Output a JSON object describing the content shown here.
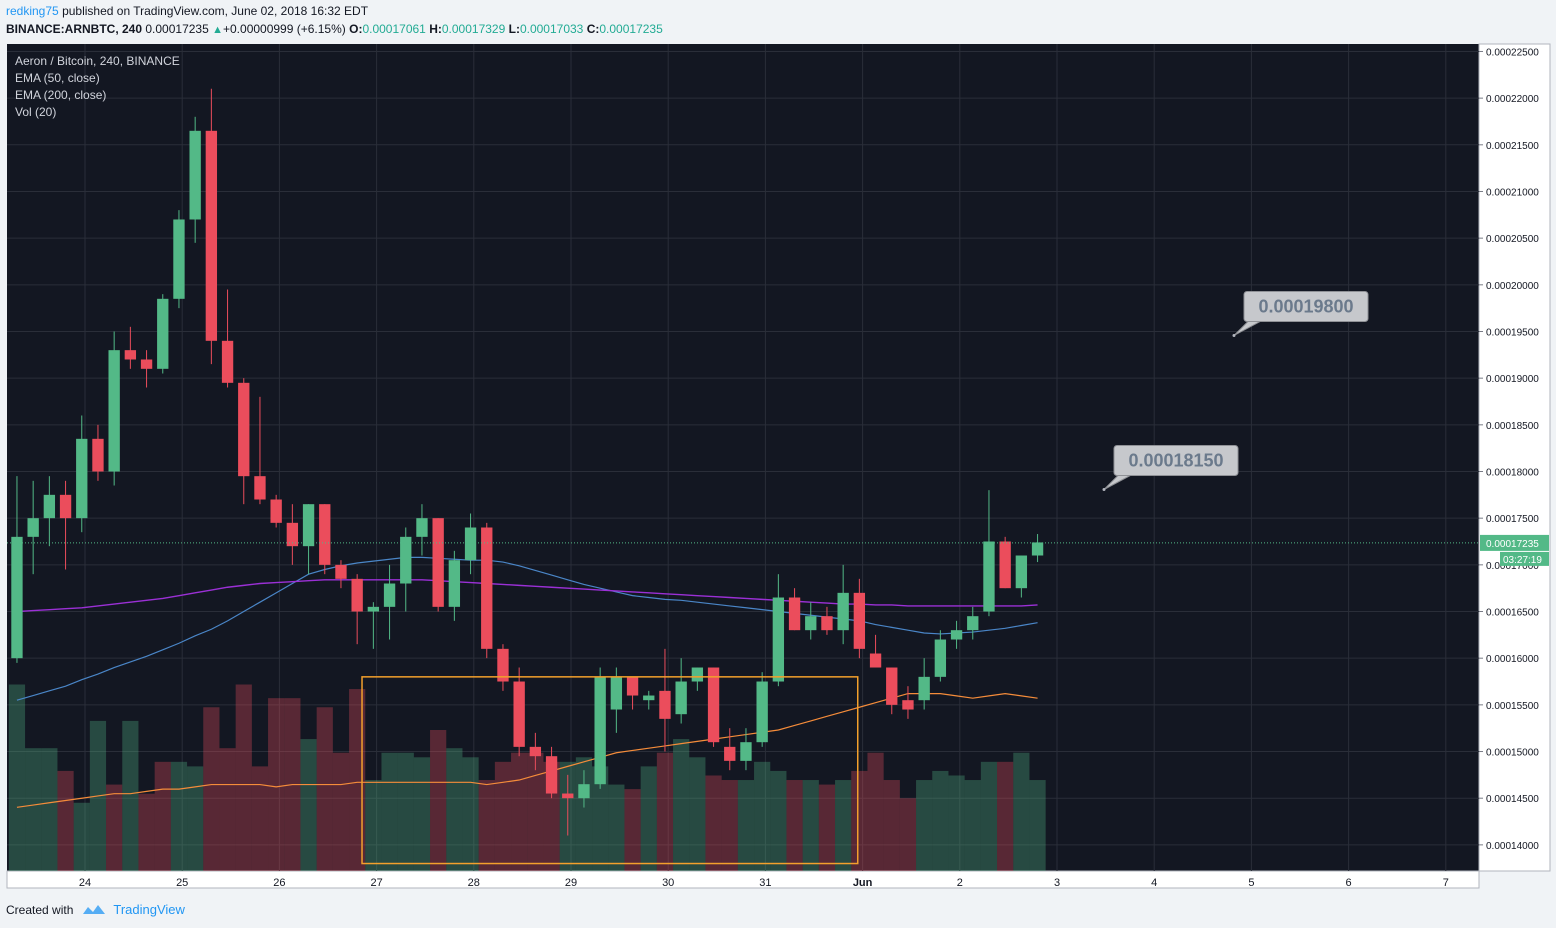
{
  "header": {
    "author": "redking75",
    "published_text": "published on TradingView.com, June 02, 2018 16:32 EDT",
    "symbol": "BINANCE:ARNBTC, 240",
    "last_price": "0.00017235",
    "change": "+0.00000999 (+6.15%)",
    "o_label": "O:",
    "o_value": "0.00017061",
    "h_label": "H:",
    "h_value": "0.00017329",
    "l_label": "L:",
    "l_value": "0.00017033",
    "c_label": "C:",
    "c_value": "0.00017235"
  },
  "legend": {
    "title": "Aeron / Bitcoin, 240, BINANCE",
    "ema50": "EMA (50, close)",
    "ema200": "EMA (200, close)",
    "vol": "Vol (20)"
  },
  "footer": {
    "created_with": "Created with",
    "brand": "TradingView"
  },
  "colors": {
    "background": "#131722",
    "up": "#53b987",
    "down": "#eb4d5c",
    "ema50": "#4a86c8",
    "ema200": "#9b30d6",
    "vol_ma": "#f58c3a",
    "box": "#f3a02c",
    "grid": "#2a2e39"
  },
  "price_tags": {
    "last_price_label": "0.00017235",
    "countdown": "03:27:19"
  },
  "chart_data": {
    "type": "candlestick",
    "title": "Aeron / Bitcoin, 240, BINANCE",
    "x_ticks": [
      "24",
      "25",
      "26",
      "27",
      "28",
      "29",
      "30",
      "31",
      "Jun",
      "2",
      "3",
      "4",
      "5",
      "6",
      "7"
    ],
    "y_ticks": [
      "0.00014000",
      "0.00014500",
      "0.00015000",
      "0.00015500",
      "0.00016000",
      "0.00016500",
      "0.00017000",
      "0.00017500",
      "0.00018000",
      "0.00018500",
      "0.00019000",
      "0.00019500",
      "0.00020000",
      "0.00020500",
      "0.00021000",
      "0.00021500",
      "0.00022000",
      "0.00022500"
    ],
    "ylim": [
      0.0001372,
      0.0002258
    ],
    "candle_interval": "4h",
    "first_candle_x": 23.3,
    "candles": [
      [
        0.00016,
        0.0001795,
        0.0001595,
        0.000173
      ],
      [
        0.000173,
        0.000179,
        0.000169,
        0.000175
      ],
      [
        0.000175,
        0.0001795,
        0.000172,
        0.0001775
      ],
      [
        0.0001775,
        0.000179,
        0.0001695,
        0.000175
      ],
      [
        0.000175,
        0.000186,
        0.0001735,
        0.0001835
      ],
      [
        0.0001835,
        0.000185,
        0.000179,
        0.00018
      ],
      [
        0.00018,
        0.000195,
        0.0001785,
        0.000193
      ],
      [
        0.000193,
        0.0001955,
        0.000191,
        0.000192
      ],
      [
        0.000192,
        0.000193,
        0.000189,
        0.000191
      ],
      [
        0.000191,
        0.000199,
        0.0001905,
        0.0001985
      ],
      [
        0.0001985,
        0.000208,
        0.0001975,
        0.000207
      ],
      [
        0.000207,
        0.000218,
        0.0002045,
        0.0002165
      ],
      [
        0.0002165,
        0.000221,
        0.0001915,
        0.000194
      ],
      [
        0.000194,
        0.0001995,
        0.000189,
        0.0001895
      ],
      [
        0.0001895,
        0.00019,
        0.0001765,
        0.0001795
      ],
      [
        0.0001795,
        0.000188,
        0.0001765,
        0.000177
      ],
      [
        0.000177,
        0.0001775,
        0.000174,
        0.0001745
      ],
      [
        0.0001745,
        0.0001765,
        0.00017,
        0.000172
      ],
      [
        0.000172,
        0.0001765,
        0.000169,
        0.0001765
      ],
      [
        0.0001765,
        0.0001765,
        0.000169,
        0.00017
      ],
      [
        0.00017,
        0.0001705,
        0.0001675,
        0.0001685
      ],
      [
        0.0001685,
        0.000169,
        0.0001615,
        0.000165
      ],
      [
        0.000165,
        0.000166,
        0.000161,
        0.0001655
      ],
      [
        0.0001655,
        0.00017,
        0.000162,
        0.000168
      ],
      [
        0.000168,
        0.000174,
        0.000165,
        0.000173
      ],
      [
        0.000173,
        0.0001765,
        0.000171,
        0.000175
      ],
      [
        0.000175,
        0.000175,
        0.000165,
        0.0001655
      ],
      [
        0.0001655,
        0.0001715,
        0.000164,
        0.0001705
      ],
      [
        0.0001705,
        0.0001755,
        0.000169,
        0.000174
      ],
      [
        0.000174,
        0.0001745,
        0.00016,
        0.000161
      ],
      [
        0.000161,
        0.0001615,
        0.0001565,
        0.0001575
      ],
      [
        0.0001575,
        0.000159,
        0.0001495,
        0.0001505
      ],
      [
        0.0001505,
        0.000152,
        0.000148,
        0.0001495
      ],
      [
        0.0001495,
        0.0001505,
        0.000145,
        0.0001455
      ],
      [
        0.0001455,
        0.0001475,
        0.000141,
        0.000145
      ],
      [
        0.000145,
        0.000148,
        0.000144,
        0.0001465
      ],
      [
        0.0001465,
        0.000159,
        0.000146,
        0.000158
      ],
      [
        0.0001545,
        0.000159,
        0.000152,
        0.000158
      ],
      [
        0.000158,
        0.000158,
        0.0001545,
        0.000156
      ],
      [
        0.0001555,
        0.0001565,
        0.0001545,
        0.000156
      ],
      [
        0.0001565,
        0.000161,
        0.00015,
        0.0001535
      ],
      [
        0.000154,
        0.00016,
        0.000153,
        0.0001575
      ],
      [
        0.0001575,
        0.000159,
        0.0001565,
        0.000159
      ],
      [
        0.000159,
        0.000159,
        0.0001505,
        0.000151
      ],
      [
        0.0001505,
        0.0001525,
        0.000148,
        0.000149
      ],
      [
        0.000149,
        0.0001525,
        0.000148,
        0.000151
      ],
      [
        0.000151,
        0.0001585,
        0.0001505,
        0.0001575
      ],
      [
        0.0001575,
        0.000169,
        0.000157,
        0.0001665
      ],
      [
        0.0001665,
        0.0001675,
        0.000163,
        0.000163
      ],
      [
        0.000163,
        0.000166,
        0.000162,
        0.0001645
      ],
      [
        0.0001645,
        0.0001655,
        0.0001625,
        0.000163
      ],
      [
        0.000163,
        0.00017,
        0.0001615,
        0.000167
      ],
      [
        0.000167,
        0.0001685,
        0.00016,
        0.000161
      ],
      [
        0.0001605,
        0.0001625,
        0.000159,
        0.000159
      ],
      [
        0.000159,
        0.000159,
        0.000154,
        0.000155
      ],
      [
        0.0001555,
        0.000157,
        0.0001535,
        0.0001545
      ],
      [
        0.0001555,
        0.00016,
        0.0001545,
        0.000158
      ],
      [
        0.000158,
        0.000163,
        0.0001575,
        0.000162
      ],
      [
        0.000162,
        0.000164,
        0.000161,
        0.000163
      ],
      [
        0.000163,
        0.0001655,
        0.000162,
        0.0001645
      ],
      [
        0.000165,
        0.000178,
        0.0001645,
        0.0001725
      ],
      [
        0.0001725,
        0.000173,
        0.0001675,
        0.0001675
      ],
      [
        0.0001675,
        0.000171,
        0.0001665,
        0.000171
      ],
      [
        0.000171,
        0.0001733,
        0.0001703,
        0.0001724
      ]
    ],
    "ema50": [
      0.0001555,
      0.000156,
      0.0001565,
      0.000157,
      0.0001577,
      0.0001583,
      0.000159,
      0.0001596,
      0.0001602,
      0.0001609,
      0.0001616,
      0.0001624,
      0.0001631,
      0.000164,
      0.000165,
      0.000166,
      0.000167,
      0.000168,
      0.000169,
      0.0001695,
      0.0001699,
      0.0001702,
      0.0001704,
      0.0001706,
      0.0001708,
      0.0001708,
      0.0001707,
      0.0001706,
      0.0001705,
      0.0001705,
      0.0001703,
      0.0001699,
      0.0001694,
      0.0001689,
      0.0001684,
      0.0001679,
      0.0001675,
      0.0001671,
      0.0001667,
      0.0001665,
      0.0001663,
      0.0001662,
      0.000166,
      0.0001658,
      0.0001656,
      0.0001654,
      0.0001652,
      0.000165,
      0.0001648,
      0.0001646,
      0.0001644,
      0.0001642,
      0.000164,
      0.0001636,
      0.0001633,
      0.000163,
      0.0001627,
      0.0001626,
      0.0001627,
      0.0001628,
      0.000163,
      0.0001632,
      0.0001635,
      0.0001638
    ],
    "ema200": [
      0.000165,
      0.0001651,
      0.0001652,
      0.0001653,
      0.0001654,
      0.0001656,
      0.0001658,
      0.000166,
      0.0001662,
      0.0001664,
      0.0001667,
      0.000167,
      0.0001673,
      0.0001676,
      0.0001678,
      0.000168,
      0.0001681,
      0.0001682,
      0.0001683,
      0.0001684,
      0.0001684,
      0.0001684,
      0.0001684,
      0.0001684,
      0.0001684,
      0.0001684,
      0.0001683,
      0.0001682,
      0.0001681,
      0.000168,
      0.0001679,
      0.0001678,
      0.0001677,
      0.0001676,
      0.0001675,
      0.0001674,
      0.0001673,
      0.0001672,
      0.0001671,
      0.000167,
      0.0001669,
      0.0001668,
      0.0001667,
      0.0001666,
      0.0001665,
      0.0001664,
      0.0001663,
      0.0001662,
      0.0001661,
      0.000166,
      0.0001659,
      0.0001658,
      0.0001658,
      0.0001657,
      0.0001657,
      0.0001656,
      0.0001656,
      0.0001656,
      0.0001656,
      0.0001656,
      0.0001656,
      0.0001656,
      0.0001656,
      0.0001657
    ],
    "volumes": [
      0.41,
      0.27,
      0.27,
      0.22,
      0.15,
      0.33,
      0.19,
      0.33,
      0.17,
      0.24,
      0.24,
      0.23,
      0.36,
      0.27,
      0.41,
      0.23,
      0.38,
      0.38,
      0.29,
      0.36,
      0.26,
      0.4,
      0.2,
      0.26,
      0.26,
      0.25,
      0.31,
      0.27,
      0.25,
      0.2,
      0.24,
      0.26,
      0.26,
      0.24,
      0.24,
      0.25,
      0.23,
      0.19,
      0.18,
      0.23,
      0.26,
      0.29,
      0.25,
      0.21,
      0.2,
      0.2,
      0.24,
      0.22,
      0.2,
      0.2,
      0.19,
      0.2,
      0.22,
      0.26,
      0.2,
      0.16,
      0.2,
      0.22,
      0.21,
      0.2,
      0.24,
      0.24,
      0.26,
      0.2
    ],
    "vol_ma": [
      0.14,
      0.145,
      0.15,
      0.155,
      0.16,
      0.165,
      0.17,
      0.17,
      0.175,
      0.18,
      0.18,
      0.185,
      0.19,
      0.19,
      0.19,
      0.19,
      0.185,
      0.19,
      0.19,
      0.19,
      0.19,
      0.195,
      0.195,
      0.195,
      0.195,
      0.195,
      0.195,
      0.195,
      0.195,
      0.19,
      0.195,
      0.2,
      0.21,
      0.22,
      0.23,
      0.24,
      0.25,
      0.26,
      0.265,
      0.27,
      0.275,
      0.28,
      0.285,
      0.29,
      0.295,
      0.3,
      0.305,
      0.31,
      0.32,
      0.33,
      0.34,
      0.35,
      0.36,
      0.37,
      0.38,
      0.39,
      0.39,
      0.39,
      0.385,
      0.38,
      0.385,
      0.39,
      0.385,
      0.38
    ],
    "vol_colors": [
      "up",
      "up",
      "up",
      "down",
      "up",
      "up",
      "down",
      "up",
      "down",
      "down",
      "up",
      "up",
      "down",
      "down",
      "down",
      "down",
      "down",
      "down",
      "up",
      "down",
      "down",
      "down",
      "up",
      "up",
      "up",
      "up",
      "down",
      "up",
      "up",
      "down",
      "down",
      "down",
      "down",
      "down",
      "up",
      "up",
      "up",
      "up",
      "down",
      "up",
      "down",
      "up",
      "up",
      "down",
      "down",
      "up",
      "up",
      "up",
      "down",
      "up",
      "down",
      "up",
      "down",
      "down",
      "down",
      "down",
      "up",
      "up",
      "up",
      "up",
      "up",
      "down",
      "up",
      "up"
    ],
    "annotations": [
      {
        "type": "callout",
        "text": "0.00019800",
        "price": 0.000198
      },
      {
        "type": "callout",
        "text": "0.00018150",
        "price": 0.0001815
      },
      {
        "type": "rectangle",
        "price_top": 0.000158,
        "price_bottom": 0.000138,
        "x_start": 26.85,
        "x_end": 31.95
      }
    ]
  }
}
